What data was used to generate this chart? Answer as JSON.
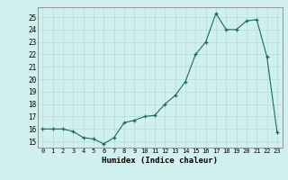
{
  "title": "",
  "xlabel": "Humidex (Indice chaleur)",
  "x": [
    0,
    1,
    2,
    3,
    4,
    5,
    6,
    7,
    8,
    9,
    10,
    11,
    12,
    13,
    14,
    15,
    16,
    17,
    18,
    19,
    20,
    21,
    22,
    23
  ],
  "y": [
    16,
    16,
    16,
    15.8,
    15.3,
    15.2,
    14.8,
    15.3,
    16.5,
    16.7,
    17.0,
    17.1,
    18.0,
    18.7,
    19.8,
    22.0,
    23.0,
    25.3,
    24.0,
    24.0,
    24.7,
    24.8,
    21.8,
    15.7
  ],
  "ylim": [
    14.5,
    25.8
  ],
  "xlim": [
    -0.5,
    23.5
  ],
  "yticks": [
    15,
    16,
    17,
    18,
    19,
    20,
    21,
    22,
    23,
    24,
    25
  ],
  "xticks": [
    0,
    1,
    2,
    3,
    4,
    5,
    6,
    7,
    8,
    9,
    10,
    11,
    12,
    13,
    14,
    15,
    16,
    17,
    18,
    19,
    20,
    21,
    22,
    23
  ],
  "line_color": "#1a6b5a",
  "bg_color": "#cff0ee",
  "major_grid_color": "#b8dbd8",
  "minor_grid_color": "#d8f0ee"
}
